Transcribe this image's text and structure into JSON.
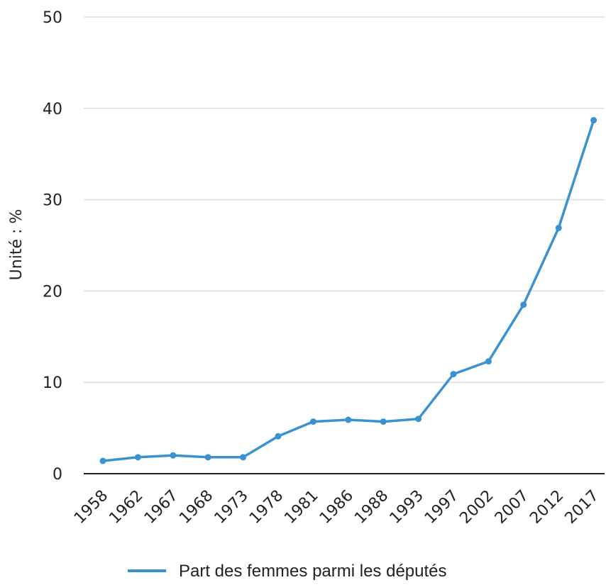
{
  "chart_data": {
    "type": "line",
    "ylabel": "Unité : %",
    "ylim": [
      0,
      50
    ],
    "yticks": [
      0,
      10,
      20,
      30,
      40,
      50
    ],
    "categories": [
      "1958",
      "1962",
      "1967",
      "1968",
      "1973",
      "1978",
      "1981",
      "1986",
      "1988",
      "1993",
      "1997",
      "2002",
      "2007",
      "2012",
      "2017"
    ],
    "series": [
      {
        "name": "Part des femmes parmi les députés",
        "values": [
          1.4,
          1.8,
          2.0,
          1.8,
          1.8,
          4.1,
          5.7,
          5.9,
          5.7,
          6.0,
          10.9,
          12.3,
          18.5,
          26.9,
          38.7
        ]
      }
    ],
    "grid": true,
    "legend": "bottom",
    "colors": {
      "series": "#3a92d0",
      "grid": "#dddddd",
      "axis": "#222222"
    }
  }
}
